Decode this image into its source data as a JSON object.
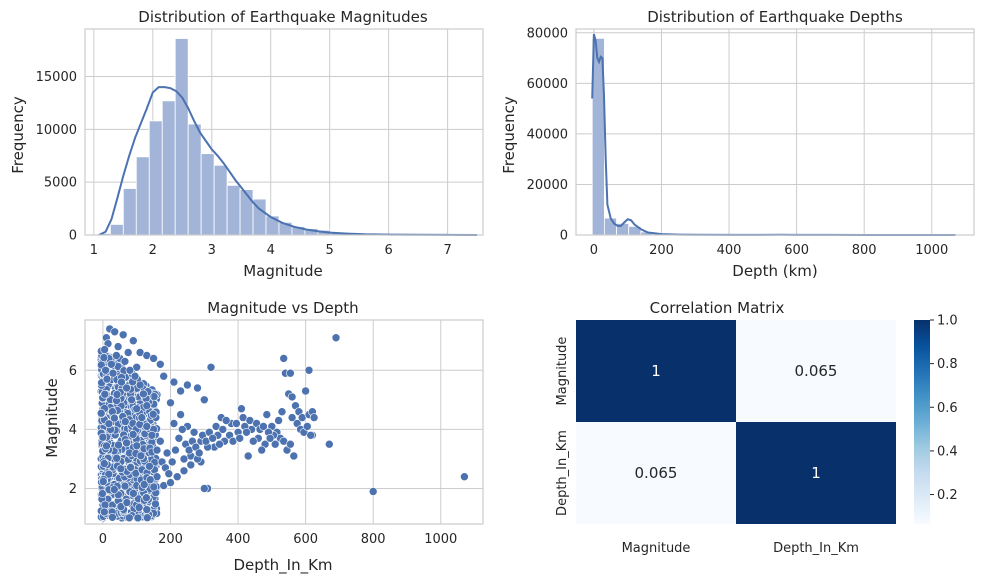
{
  "chart_data": [
    {
      "type": "bar",
      "subtype": "histogram-with-kde",
      "title": "Distribution of Earthquake Magnitudes",
      "xlabel": "Magnitude",
      "ylabel": "Frequency",
      "xlim": [
        0.85,
        7.6
      ],
      "ylim": [
        0,
        19500
      ],
      "xticks": [
        1,
        2,
        3,
        4,
        5,
        6,
        7
      ],
      "yticks": [
        0,
        5000,
        10000,
        15000
      ],
      "bar_color": "#a2b4d8",
      "line_color": "#4c72b0",
      "bins": [
        {
          "x0": 1.06,
          "x1": 1.28,
          "count": 150
        },
        {
          "x0": 1.28,
          "x1": 1.5,
          "count": 1000
        },
        {
          "x0": 1.5,
          "x1": 1.72,
          "count": 4400
        },
        {
          "x0": 1.72,
          "x1": 1.94,
          "count": 7400
        },
        {
          "x0": 1.94,
          "x1": 2.16,
          "count": 10800
        },
        {
          "x0": 2.16,
          "x1": 2.38,
          "count": 12700
        },
        {
          "x0": 2.38,
          "x1": 2.6,
          "count": 18600
        },
        {
          "x0": 2.6,
          "x1": 2.82,
          "count": 10500
        },
        {
          "x0": 2.82,
          "x1": 3.04,
          "count": 7700
        },
        {
          "x0": 3.04,
          "x1": 3.26,
          "count": 6600
        },
        {
          "x0": 3.26,
          "x1": 3.48,
          "count": 4700
        },
        {
          "x0": 3.48,
          "x1": 3.7,
          "count": 4300
        },
        {
          "x0": 3.7,
          "x1": 3.92,
          "count": 3400
        },
        {
          "x0": 3.92,
          "x1": 4.14,
          "count": 1800
        },
        {
          "x0": 4.14,
          "x1": 4.36,
          "count": 1200
        },
        {
          "x0": 4.36,
          "x1": 4.58,
          "count": 800
        },
        {
          "x0": 4.58,
          "x1": 4.8,
          "count": 600
        },
        {
          "x0": 4.8,
          "x1": 5.02,
          "count": 450
        },
        {
          "x0": 5.02,
          "x1": 5.24,
          "count": 250
        },
        {
          "x0": 5.24,
          "x1": 5.46,
          "count": 150
        },
        {
          "x0": 5.46,
          "x1": 5.68,
          "count": 120
        },
        {
          "x0": 5.68,
          "x1": 5.9,
          "count": 80
        },
        {
          "x0": 5.9,
          "x1": 6.12,
          "count": 60
        },
        {
          "x0": 6.12,
          "x1": 6.34,
          "count": 40
        },
        {
          "x0": 6.34,
          "x1": 6.56,
          "count": 25
        },
        {
          "x0": 6.56,
          "x1": 6.78,
          "count": 15
        },
        {
          "x0": 6.78,
          "x1": 7.0,
          "count": 8
        },
        {
          "x0": 7.0,
          "x1": 7.22,
          "count": 5
        }
      ],
      "kde": [
        [
          1.1,
          30
        ],
        [
          1.2,
          300
        ],
        [
          1.3,
          1500
        ],
        [
          1.4,
          3500
        ],
        [
          1.5,
          5600
        ],
        [
          1.6,
          7500
        ],
        [
          1.7,
          9200
        ],
        [
          1.8,
          10600
        ],
        [
          1.9,
          12000
        ],
        [
          2.0,
          13500
        ],
        [
          2.1,
          14000
        ],
        [
          2.2,
          14000
        ],
        [
          2.3,
          13900
        ],
        [
          2.4,
          13600
        ],
        [
          2.5,
          13000
        ],
        [
          2.6,
          12000
        ],
        [
          2.7,
          10800
        ],
        [
          2.8,
          9700
        ],
        [
          2.9,
          8900
        ],
        [
          3.0,
          8100
        ],
        [
          3.1,
          7500
        ],
        [
          3.2,
          6800
        ],
        [
          3.3,
          6000
        ],
        [
          3.4,
          5200
        ],
        [
          3.5,
          4500
        ],
        [
          3.6,
          3800
        ],
        [
          3.7,
          3100
        ],
        [
          3.8,
          2500
        ],
        [
          4.0,
          1700
        ],
        [
          4.2,
          1150
        ],
        [
          4.4,
          780
        ],
        [
          4.6,
          520
        ],
        [
          4.8,
          350
        ],
        [
          5.0,
          230
        ],
        [
          5.3,
          130
        ],
        [
          5.6,
          70
        ],
        [
          6.0,
          35
        ],
        [
          6.5,
          15
        ],
        [
          7.0,
          5
        ],
        [
          7.5,
          1
        ]
      ]
    },
    {
      "type": "bar",
      "subtype": "histogram-with-kde",
      "title": "Distribution of Earthquake Depths",
      "xlabel": "Depth (km)",
      "ylabel": "Frequency",
      "xlim": [
        -53,
        1125
      ],
      "ylim": [
        0,
        81500
      ],
      "xticks": [
        0,
        200,
        400,
        600,
        800,
        1000
      ],
      "yticks": [
        0,
        20000,
        40000,
        60000,
        80000
      ],
      "bar_color": "#a2b4d8",
      "line_color": "#4c72b0",
      "bins": [
        {
          "x0": -5,
          "x1": 31,
          "count": 77800
        },
        {
          "x0": 31,
          "x1": 67,
          "count": 6700
        },
        {
          "x0": 67,
          "x1": 103,
          "count": 4600
        },
        {
          "x0": 103,
          "x1": 139,
          "count": 3400
        },
        {
          "x0": 139,
          "x1": 175,
          "count": 1200
        },
        {
          "x0": 175,
          "x1": 211,
          "count": 400
        },
        {
          "x0": 211,
          "x1": 247,
          "count": 200
        },
        {
          "x0": 247,
          "x1": 283,
          "count": 120
        },
        {
          "x0": 283,
          "x1": 319,
          "count": 90
        },
        {
          "x0": 319,
          "x1": 355,
          "count": 60
        },
        {
          "x0": 355,
          "x1": 391,
          "count": 40
        },
        {
          "x0": 391,
          "x1": 427,
          "count": 30
        },
        {
          "x0": 427,
          "x1": 463,
          "count": 30
        },
        {
          "x0": 463,
          "x1": 499,
          "count": 25
        },
        {
          "x0": 499,
          "x1": 535,
          "count": 30
        },
        {
          "x0": 535,
          "x1": 571,
          "count": 40
        },
        {
          "x0": 571,
          "x1": 607,
          "count": 50
        },
        {
          "x0": 607,
          "x1": 643,
          "count": 30
        },
        {
          "x0": 643,
          "x1": 679,
          "count": 15
        },
        {
          "x0": 679,
          "x1": 715,
          "count": 5
        }
      ],
      "kde": [
        [
          -5,
          54000
        ],
        [
          0,
          79500
        ],
        [
          5,
          77000
        ],
        [
          10,
          70000
        ],
        [
          15,
          68500
        ],
        [
          20,
          70500
        ],
        [
          25,
          70000
        ],
        [
          30,
          55000
        ],
        [
          35,
          30000
        ],
        [
          40,
          12000
        ],
        [
          50,
          6500
        ],
        [
          60,
          4500
        ],
        [
          70,
          3600
        ],
        [
          80,
          3600
        ],
        [
          90,
          5000
        ],
        [
          100,
          6200
        ],
        [
          110,
          5800
        ],
        [
          120,
          4200
        ],
        [
          140,
          2200
        ],
        [
          160,
          1000
        ],
        [
          200,
          350
        ],
        [
          250,
          150
        ],
        [
          300,
          80
        ],
        [
          400,
          40
        ],
        [
          500,
          40
        ],
        [
          550,
          60
        ],
        [
          600,
          50
        ],
        [
          700,
          20
        ],
        [
          800,
          8
        ],
        [
          1000,
          2
        ],
        [
          1070,
          0
        ]
      ]
    },
    {
      "type": "scatter",
      "title": "Magnitude vs Depth",
      "xlabel": "Depth_In_Km",
      "ylabel": "Magnitude",
      "xlim": [
        -53,
        1125
      ],
      "ylim": [
        0.8,
        7.7
      ],
      "xticks": [
        0,
        200,
        400,
        600,
        800,
        1000
      ],
      "yticks": [
        2,
        4,
        6
      ],
      "point_color": "#4c72b0",
      "points": [
        [
          20,
          7.4
        ],
        [
          35,
          7.3
        ],
        [
          60,
          7.2
        ],
        [
          10,
          7.1
        ],
        [
          90,
          7.0
        ],
        [
          15,
          6.9
        ],
        [
          45,
          6.8
        ],
        [
          5,
          6.7
        ],
        [
          110,
          6.6
        ],
        [
          130,
          6.5
        ],
        [
          75,
          6.6
        ],
        [
          50,
          6.4
        ],
        [
          150,
          6.4
        ],
        [
          170,
          6.2
        ],
        [
          100,
          6.1
        ],
        [
          320,
          6.1
        ],
        [
          180,
          5.8
        ],
        [
          210,
          5.6
        ],
        [
          250,
          5.5
        ],
        [
          230,
          5.3
        ],
        [
          280,
          5.4
        ],
        [
          300,
          5.0
        ],
        [
          200,
          4.9
        ],
        [
          350,
          4.4
        ],
        [
          380,
          4.2
        ],
        [
          410,
          4.7
        ],
        [
          440,
          4.0
        ],
        [
          460,
          3.7
        ],
        [
          480,
          3.5
        ],
        [
          400,
          3.9
        ],
        [
          420,
          4.1
        ],
        [
          360,
          3.6
        ],
        [
          340,
          3.8
        ],
        [
          330,
          3.4
        ],
        [
          470,
          3.3
        ],
        [
          430,
          3.1
        ],
        [
          260,
          3.1
        ],
        [
          240,
          3.0
        ],
        [
          290,
          2.9
        ],
        [
          310,
          3.4
        ],
        [
          500,
          4.1
        ],
        [
          520,
          4.3
        ],
        [
          530,
          4.6
        ],
        [
          540,
          5.9
        ],
        [
          550,
          5.2
        ],
        [
          560,
          5.1
        ],
        [
          570,
          4.8
        ],
        [
          580,
          4.6
        ],
        [
          590,
          4.4
        ],
        [
          600,
          5.3
        ],
        [
          610,
          4.5
        ],
        [
          620,
          4.6
        ],
        [
          560,
          4.4
        ],
        [
          575,
          4.2
        ],
        [
          585,
          4.0
        ],
        [
          595,
          3.9
        ],
        [
          605,
          4.1
        ],
        [
          515,
          3.9
        ],
        [
          525,
          3.7
        ],
        [
          535,
          3.6
        ],
        [
          545,
          3.3
        ],
        [
          555,
          3.5
        ],
        [
          565,
          3.1
        ],
        [
          505,
          3.8
        ],
        [
          490,
          3.9
        ],
        [
          510,
          3.5
        ],
        [
          620,
          3.8
        ],
        [
          625,
          4.4
        ],
        [
          615,
          3.8
        ],
        [
          535,
          6.4
        ],
        [
          555,
          5.9
        ],
        [
          610,
          6.0
        ],
        [
          690,
          7.1
        ],
        [
          670,
          3.5
        ],
        [
          800,
          1.9
        ],
        [
          1070,
          2.4
        ],
        [
          310,
          2.0
        ],
        [
          300,
          2.0
        ],
        [
          180,
          2.1
        ],
        [
          200,
          2.2
        ],
        [
          220,
          2.4
        ],
        [
          160,
          2.4
        ],
        [
          140,
          2.3
        ],
        [
          240,
          2.6
        ],
        [
          260,
          2.8
        ],
        [
          280,
          3.0
        ],
        [
          190,
          3.2
        ],
        [
          170,
          3.6
        ],
        [
          150,
          4.0
        ],
        [
          210,
          4.2
        ],
        [
          230,
          4.5
        ],
        [
          250,
          4.1
        ],
        [
          270,
          3.9
        ],
        [
          290,
          3.6
        ],
        [
          130,
          4.8
        ],
        [
          120,
          5.2
        ],
        [
          110,
          5.5
        ],
        [
          95,
          5.8
        ],
        [
          80,
          6.0
        ],
        [
          65,
          6.3
        ],
        [
          40,
          6.5
        ],
        [
          25,
          6.2
        ],
        [
          8,
          6.0
        ],
        [
          12,
          5.7
        ],
        [
          30,
          5.9
        ],
        [
          55,
          5.6
        ],
        [
          70,
          5.4
        ],
        [
          85,
          5.0
        ],
        [
          100,
          4.7
        ],
        [
          115,
          4.4
        ],
        [
          130,
          4.1
        ],
        [
          145,
          3.8
        ],
        [
          160,
          3.3
        ],
        [
          175,
          2.9
        ],
        [
          185,
          2.7
        ],
        [
          195,
          2.5
        ],
        [
          205,
          2.9
        ],
        [
          215,
          3.3
        ],
        [
          225,
          3.7
        ],
        [
          235,
          4.0
        ],
        [
          245,
          3.5
        ],
        [
          255,
          3.3
        ],
        [
          265,
          3.6
        ],
        [
          275,
          3.4
        ],
        [
          285,
          3.2
        ],
        [
          295,
          3.8
        ],
        [
          305,
          3.6
        ],
        [
          315,
          3.9
        ],
        [
          325,
          3.7
        ],
        [
          335,
          4.1
        ],
        [
          345,
          3.5
        ],
        [
          355,
          4.0
        ],
        [
          365,
          4.3
        ],
        [
          375,
          3.8
        ],
        [
          385,
          3.6
        ],
        [
          395,
          4.2
        ],
        [
          405,
          3.7
        ],
        [
          415,
          4.4
        ],
        [
          425,
          3.9
        ],
        [
          435,
          4.3
        ],
        [
          445,
          3.6
        ],
        [
          455,
          4.2
        ],
        [
          465,
          4.0
        ],
        [
          475,
          4.1
        ],
        [
          485,
          4.5
        ],
        [
          495,
          3.7
        ]
      ],
      "dense_cluster": {
        "x_range": [
          -5,
          160
        ],
        "y_range": [
          1.0,
          6.8
        ],
        "count": 900
      }
    },
    {
      "type": "heatmap",
      "title": "Correlation Matrix",
      "row_labels": [
        "Magnitude",
        "Depth_In_Km"
      ],
      "col_labels": [
        "Magnitude",
        "Depth_In_Km"
      ],
      "values": [
        [
          "1",
          "0.065"
        ],
        [
          "0.065",
          "1"
        ]
      ],
      "cell_values": [
        [
          1,
          0.065
        ],
        [
          0.065,
          1
        ]
      ],
      "colormap": "Blues",
      "colorbar": {
        "ticks": [
          "0.2",
          "0.4",
          "0.6",
          "0.8",
          "1.0"
        ],
        "tick_values": [
          0.2,
          0.4,
          0.6,
          0.8,
          1.0
        ],
        "range": [
          0.065,
          1.0
        ]
      }
    }
  ]
}
